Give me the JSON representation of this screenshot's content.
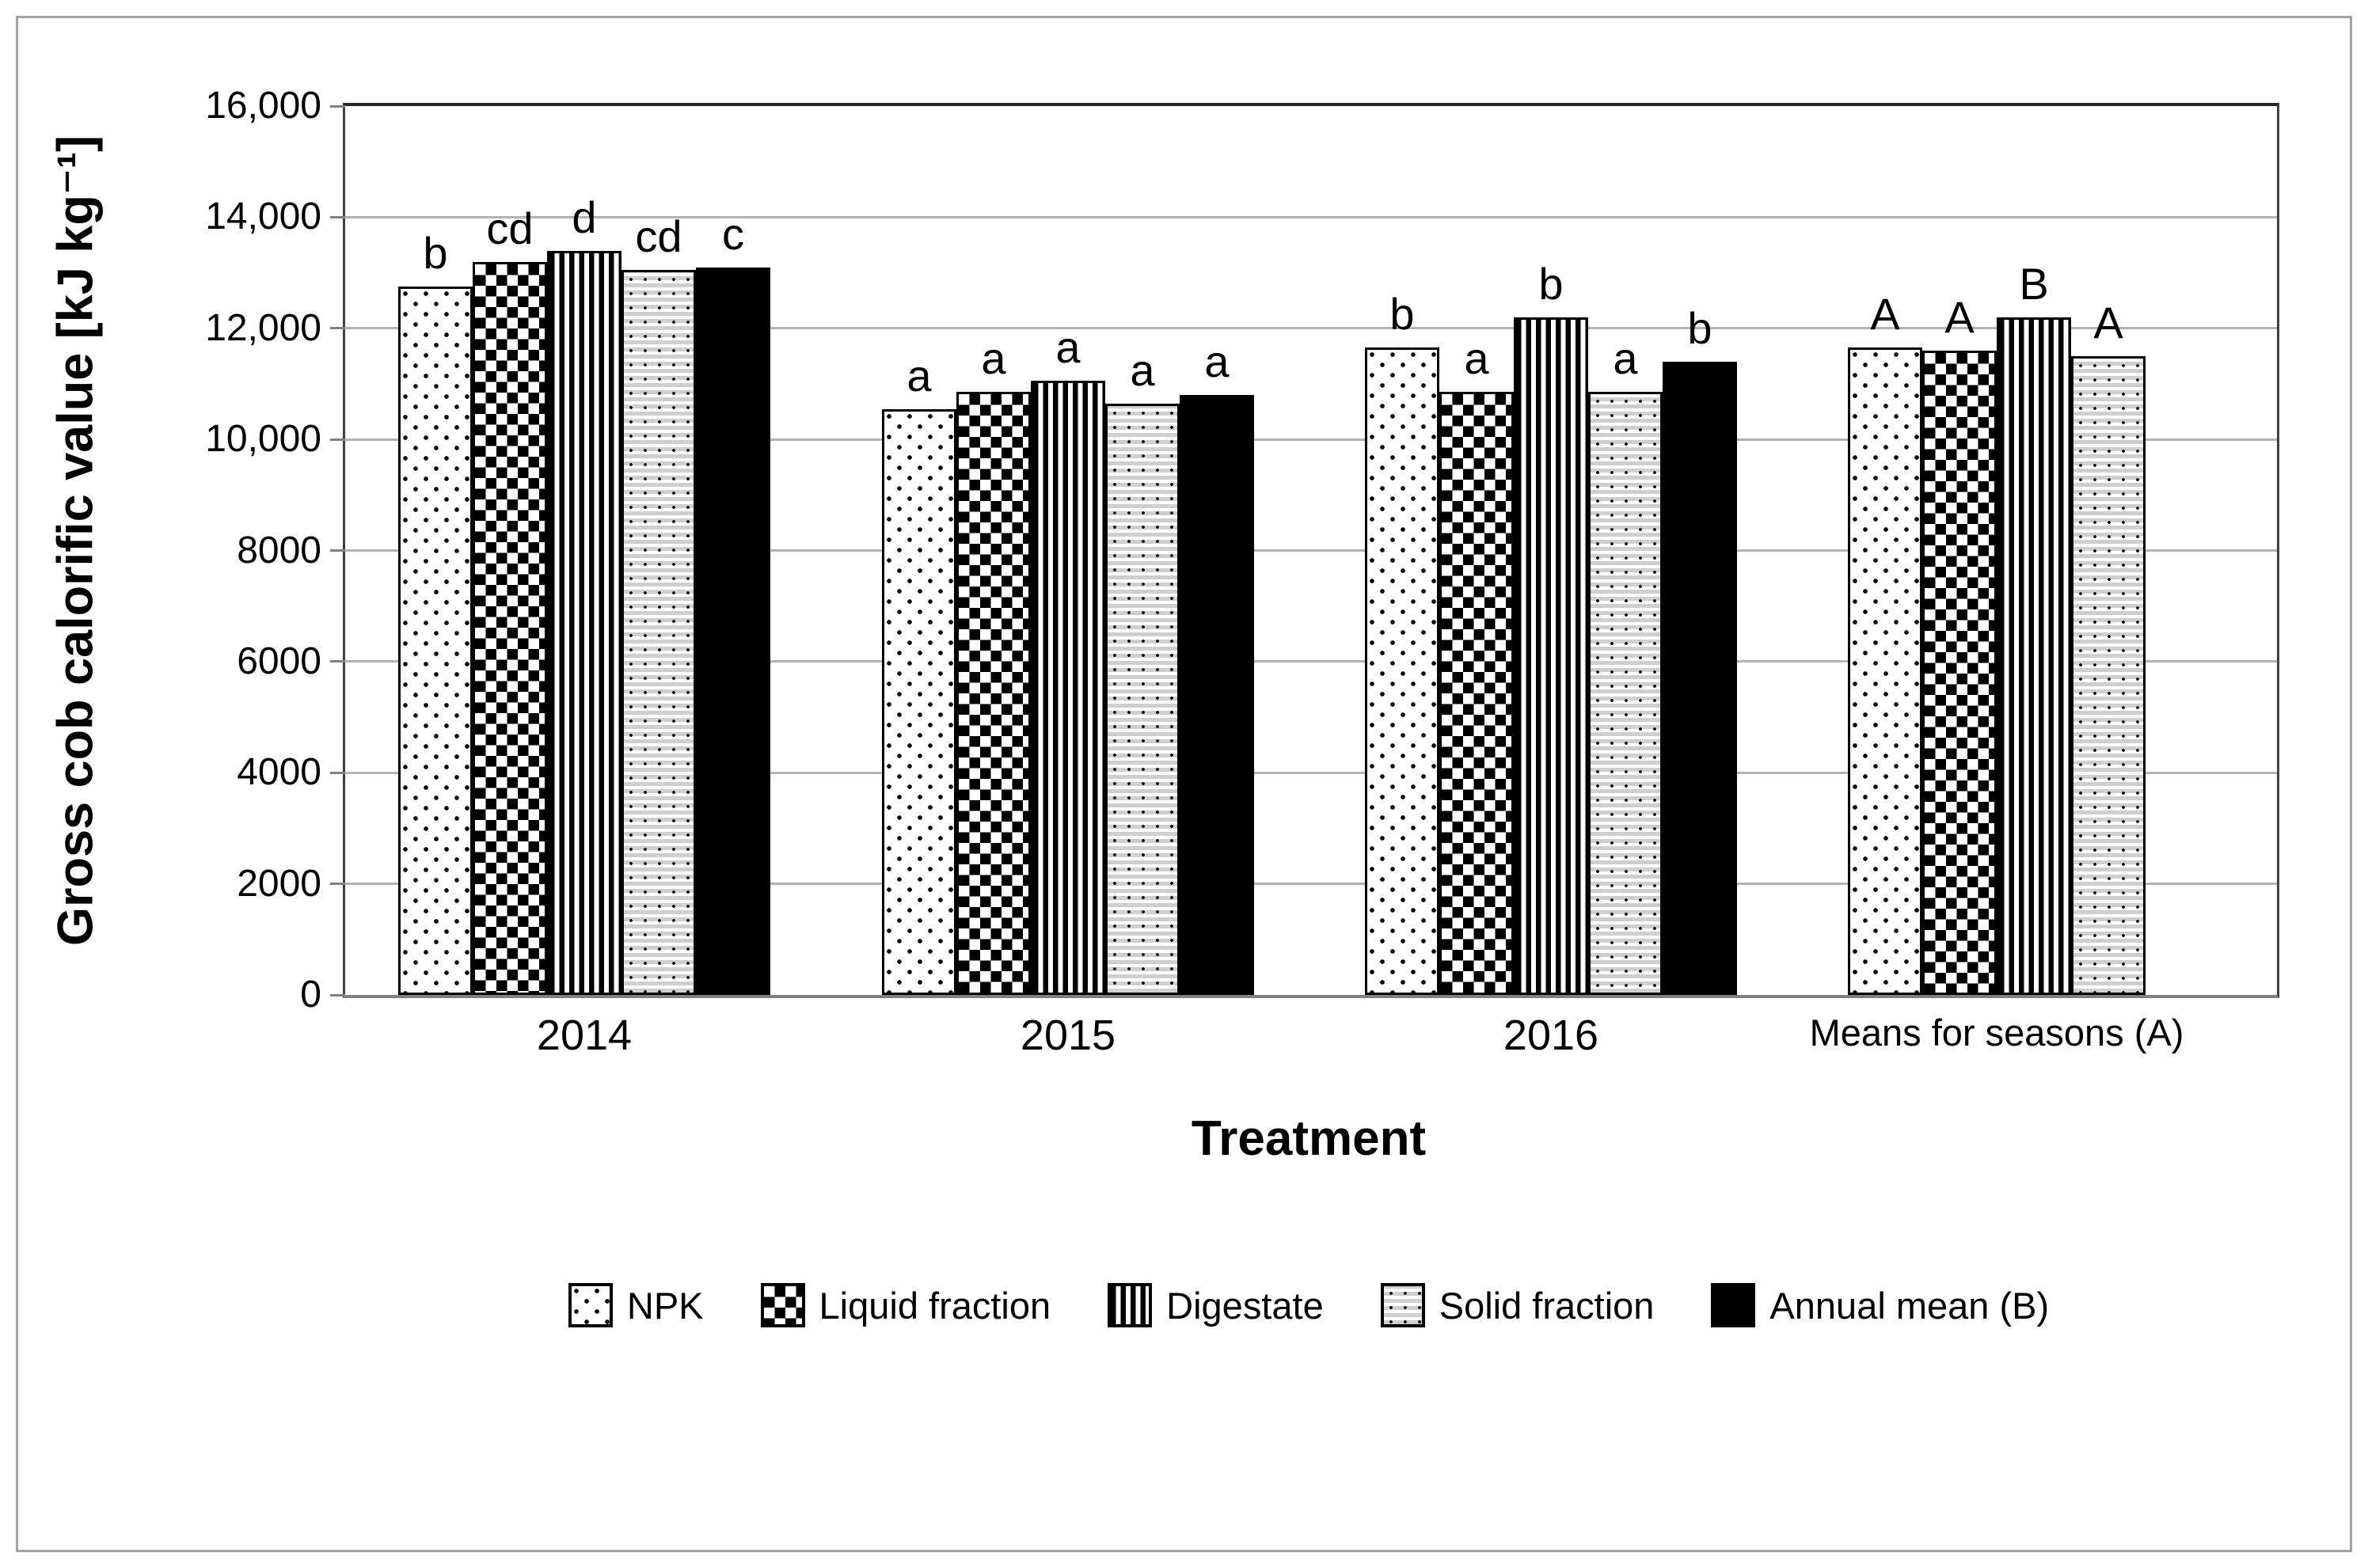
{
  "figure_type": "grouped-bar-chart",
  "colors": {
    "bar_ink": "#000000",
    "grid": "#b3b3b3",
    "axis_bottom": "#808080",
    "frame": "#3f3f3f",
    "figure_border": "#a3a3a3",
    "background": "#ffffff"
  },
  "chart_data": {
    "type": "bar",
    "title": "",
    "xlabel": "Treatment",
    "ylabel": "Gross cob calorific value [kJ kg⁻¹]",
    "ylim": [
      0,
      16000
    ],
    "ytick_step": 2000,
    "ytick_labels": [
      "0",
      "2000",
      "4000",
      "6000",
      "8000",
      "10,000",
      "12,000",
      "14,000",
      "16,000"
    ],
    "grid": true,
    "legend_position": "bottom",
    "categories": [
      "2014",
      "2015",
      "2016",
      "Means for seasons (A)"
    ],
    "series": [
      {
        "name": "NPK",
        "pattern": "dots",
        "values": [
          12750,
          10550,
          11650,
          11650
        ],
        "letters": [
          "b",
          "a",
          "b",
          "A"
        ]
      },
      {
        "name": "Liquid fraction",
        "pattern": "checker",
        "values": [
          13200,
          10850,
          10850,
          11600
        ],
        "letters": [
          "cd",
          "a",
          "a",
          "A"
        ]
      },
      {
        "name": "Digestate",
        "pattern": "vstripes",
        "values": [
          13400,
          11050,
          12200,
          12200
        ],
        "letters": [
          "d",
          "a",
          "b",
          "B"
        ]
      },
      {
        "name": "Solid fraction",
        "pattern": "fine",
        "values": [
          13050,
          10650,
          10850,
          11500
        ],
        "letters": [
          "cd",
          "a",
          "a",
          "A"
        ]
      },
      {
        "name": "Annual mean (B)",
        "pattern": "solid",
        "values": [
          13100,
          10800,
          11400,
          null
        ],
        "letters": [
          "c",
          "a",
          "b",
          null
        ]
      }
    ]
  }
}
